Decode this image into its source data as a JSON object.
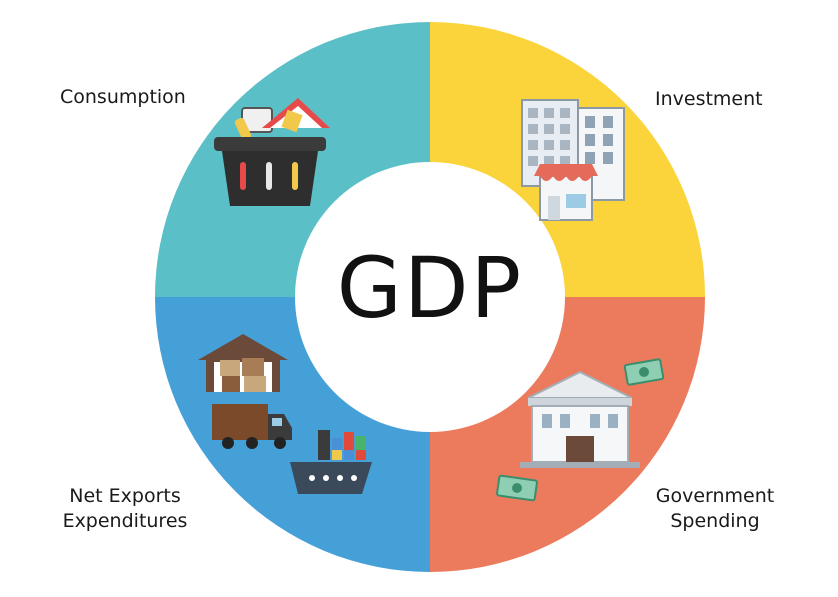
{
  "diagram": {
    "center_title": "GDP",
    "segments": [
      {
        "key": "consumption",
        "label": "Consumption",
        "color": "#5bbfc8",
        "icon": "shopping-basket-icon"
      },
      {
        "key": "investment",
        "label": "Investment",
        "color": "#fbd33a",
        "icon": "office-buildings-shop-icon"
      },
      {
        "key": "government",
        "label_lines": [
          "Government",
          "Spending"
        ],
        "color": "#ec7a5c",
        "icon": "government-building-money-icon"
      },
      {
        "key": "net_exports",
        "label_lines": [
          "Net Exports",
          "Expenditures"
        ],
        "color": "#46a0d8",
        "icon": "warehouse-truck-ship-icon"
      }
    ]
  }
}
